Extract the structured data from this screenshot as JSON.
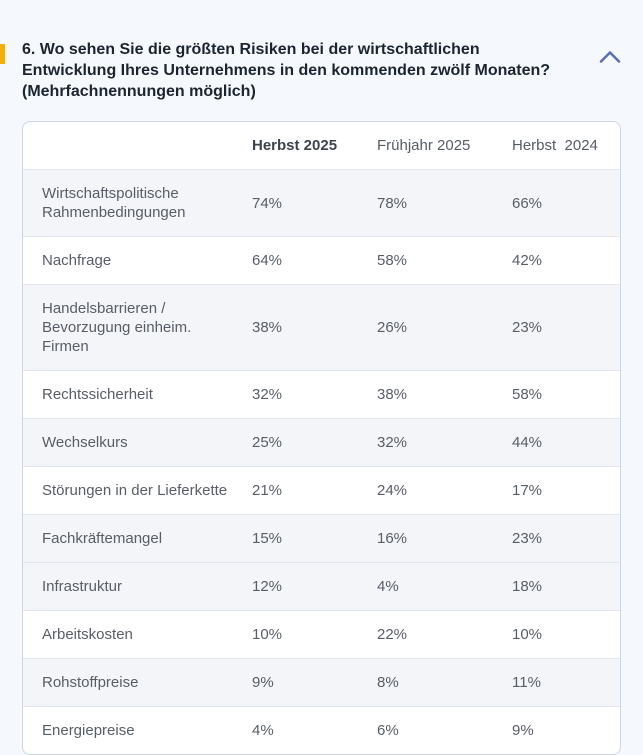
{
  "colors": {
    "accent_bar": "#F0B00F",
    "chevron": "#5B70B4",
    "page_bg": "#F5F8FC",
    "row_shaded": "#F4F5F8",
    "card_border": "#CDD5E6"
  },
  "question": {
    "lines": [
      "6. Wo sehen Sie die größten Risiken bei der wirtschaftlichen",
      "Entwicklung Ihres Unternehmens in den kommenden zwölf Monaten?",
      "(Mehrfachnennungen möglich)"
    ],
    "collapse_icon": "chevron-up"
  },
  "table": {
    "columns": [
      "Herbst 2025",
      "Frühjahr 2025",
      "Herbst  2024"
    ],
    "rows": [
      {
        "label": "Wirtschaftspolitische Rahmenbedingungen",
        "values": [
          "74%",
          "78%",
          "66%"
        ],
        "shaded": true
      },
      {
        "label": "Nachfrage",
        "values": [
          "64%",
          "58%",
          "42%"
        ],
        "shaded": false
      },
      {
        "label": "Handelsbarrieren / Bevorzugung einheim. Firmen",
        "values": [
          "38%",
          "26%",
          "23%"
        ],
        "shaded": true
      },
      {
        "label": "Rechtssicherheit",
        "values": [
          "32%",
          "38%",
          "58%"
        ],
        "shaded": false
      },
      {
        "label": "Wechselkurs",
        "values": [
          "25%",
          "32%",
          "44%"
        ],
        "shaded": true
      },
      {
        "label": "Störungen in der Lieferkette",
        "values": [
          "21%",
          "24%",
          "17%"
        ],
        "shaded": false
      },
      {
        "label": "Fachkräftemangel",
        "values": [
          "15%",
          "16%",
          "23%"
        ],
        "shaded": true
      },
      {
        "label": "Infrastruktur",
        "values": [
          "12%",
          "4%",
          "18%"
        ],
        "shaded": true
      },
      {
        "label": "Arbeitskosten",
        "values": [
          "10%",
          "22%",
          "10%"
        ],
        "shaded": false
      },
      {
        "label": "Rohstoffpreise",
        "values": [
          "9%",
          "8%",
          "11%"
        ],
        "shaded": true
      },
      {
        "label": "Energiepreise",
        "values": [
          "4%",
          "6%",
          "9%"
        ],
        "shaded": false
      }
    ]
  },
  "chart_data": {
    "type": "table",
    "title": "6. Wo sehen Sie die größten Risiken bei der wirtschaftlichen Entwicklung Ihres Unternehmens in den kommenden zwölf Monaten? (Mehrfachnennungen möglich)",
    "unit": "%",
    "columns": [
      "",
      "Herbst 2025",
      "Frühjahr 2025",
      "Herbst 2024"
    ],
    "rows": [
      [
        "Wirtschaftspolitische Rahmenbedingungen",
        74,
        78,
        66
      ],
      [
        "Nachfrage",
        64,
        58,
        42
      ],
      [
        "Handelsbarrieren / Bevorzugung einheim. Firmen",
        38,
        26,
        23
      ],
      [
        "Rechtssicherheit",
        32,
        38,
        58
      ],
      [
        "Wechselkurs",
        25,
        32,
        44
      ],
      [
        "Störungen in der Lieferkette",
        21,
        24,
        17
      ],
      [
        "Fachkräftemangel",
        15,
        16,
        23
      ],
      [
        "Infrastruktur",
        12,
        4,
        18
      ],
      [
        "Arbeitskosten",
        10,
        22,
        10
      ],
      [
        "Rohstoffpreise",
        9,
        8,
        11
      ],
      [
        "Energiepreise",
        4,
        6,
        9
      ]
    ]
  }
}
